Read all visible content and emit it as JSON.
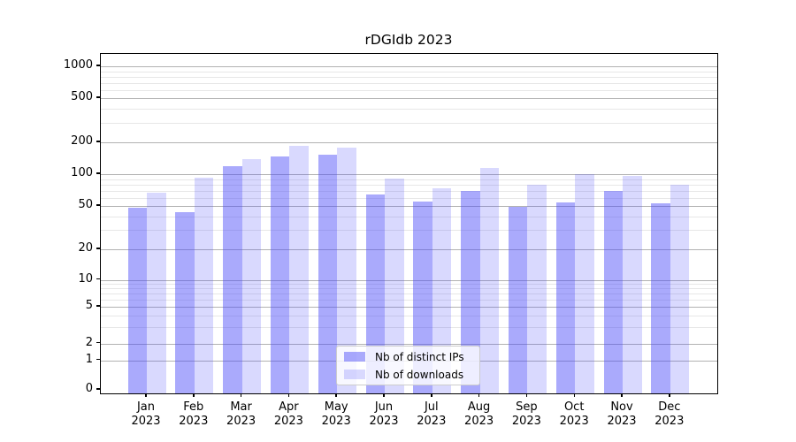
{
  "title": "rDGIdb 2023",
  "colors": {
    "background": "#ffffff",
    "frame": "#000000",
    "grid_major": "#b2b2b2",
    "grid_minor": "#e7e7e7",
    "text": "#000000",
    "ips_bar": "rgba(75,75,248,0.47)",
    "downloads_bar": "rgba(75,75,248,0.21)",
    "legend_border": "#cccccc"
  },
  "legend": {
    "position": "lower center",
    "items": [
      {
        "label": "Nb of distinct IPs"
      },
      {
        "label": "Nb of downloads"
      }
    ]
  },
  "chart_data": {
    "type": "bar",
    "title": "rDGIdb 2023",
    "categories": [
      "Jan",
      "Feb",
      "Mar",
      "Apr",
      "May",
      "Jun",
      "Jul",
      "Aug",
      "Sep",
      "Oct",
      "Nov",
      "Dec"
    ],
    "x_label_line2": "2023",
    "series": [
      {
        "name": "Nb of distinct IPs",
        "color": "rgba(75,75,248,0.47)",
        "values": [
          48,
          44,
          120,
          146,
          152,
          64,
          55,
          70,
          49,
          54,
          69,
          53
        ]
      },
      {
        "name": "Nb of downloads",
        "color": "rgba(75,75,248,0.21)",
        "values": [
          67,
          92,
          140,
          185,
          178,
          91,
          74,
          115,
          79,
          100,
          97,
          80
        ]
      }
    ],
    "y_axis": {
      "scale": "asinh-log (log spacing above ~2, compressed linear near 0)",
      "ticks": [
        0,
        1,
        2,
        5,
        10,
        20,
        50,
        100,
        200,
        500,
        1000
      ],
      "tick_fractions_from_top": [
        0.99,
        0.9023,
        0.8529,
        0.7448,
        0.6654,
        0.5755,
        0.4479,
        0.3542,
        0.2604,
        0.1302,
        0.0365
      ],
      "minor_gridlines": [
        3,
        4,
        6,
        7,
        8,
        9,
        30,
        40,
        60,
        70,
        80,
        90,
        300,
        400,
        600,
        700,
        800,
        900
      ],
      "ylim_top": 1200
    },
    "grid": "both major and minor, horizontal only",
    "legend_position": "lower center"
  }
}
